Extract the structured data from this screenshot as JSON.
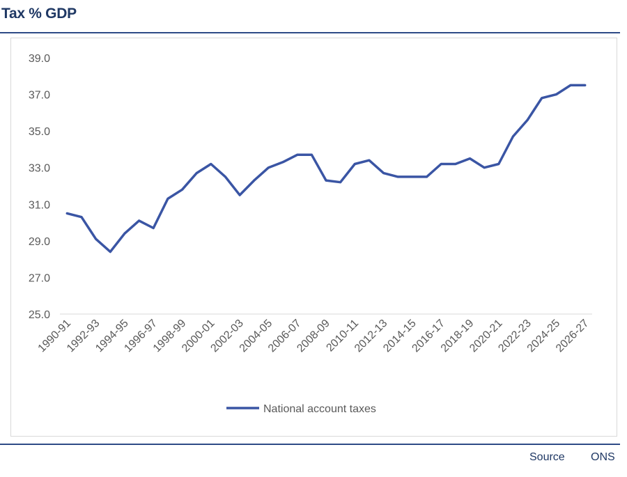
{
  "header": {
    "title": "Tax % GDP"
  },
  "footer": {
    "source_label": "Source",
    "source_value": "ONS"
  },
  "chart_data": {
    "type": "line",
    "title": "Tax % GDP",
    "xlabel": "",
    "ylabel": "",
    "ylim": [
      25.0,
      39.0
    ],
    "yticks": [
      "25.0",
      "27.0",
      "29.0",
      "31.0",
      "33.0",
      "35.0",
      "37.0",
      "39.0"
    ],
    "categories": [
      "1990-91",
      "1991-92",
      "1992-93",
      "1993-94",
      "1994-95",
      "1995-96",
      "1996-97",
      "1997-98",
      "1998-99",
      "1999-00",
      "2000-01",
      "2001-02",
      "2002-03",
      "2003-04",
      "2004-05",
      "2005-06",
      "2006-07",
      "2007-08",
      "2008-09",
      "2009-10",
      "2010-11",
      "2011-12",
      "2012-13",
      "2013-14",
      "2014-15",
      "2015-16",
      "2016-17",
      "2017-18",
      "2018-19",
      "2019-20",
      "2020-21",
      "2021-22",
      "2022-23",
      "2023-24",
      "2024-25",
      "2025-26",
      "2026-27"
    ],
    "xtick_labels": [
      "1990-91",
      "1992-93",
      "1994-95",
      "1996-97",
      "1998-99",
      "2000-01",
      "2002-03",
      "2004-05",
      "2006-07",
      "2008-09",
      "2010-11",
      "2012-13",
      "2014-15",
      "2016-17",
      "2018-19",
      "2020-21",
      "2022-23",
      "2024-25",
      "2026-27"
    ],
    "series": [
      {
        "name": "National account taxes",
        "color": "#3a55a4",
        "values": [
          30.5,
          30.3,
          29.1,
          28.4,
          29.4,
          30.1,
          29.7,
          31.3,
          31.8,
          32.7,
          33.2,
          32.5,
          31.5,
          32.3,
          33.0,
          33.3,
          33.7,
          33.7,
          32.3,
          32.2,
          33.2,
          33.4,
          32.7,
          32.5,
          32.5,
          32.5,
          33.2,
          33.2,
          33.5,
          33.0,
          33.2,
          34.7,
          35.6,
          36.8,
          37.0,
          37.5,
          37.5
        ]
      }
    ],
    "grid": false,
    "legend": "bottom-center"
  }
}
